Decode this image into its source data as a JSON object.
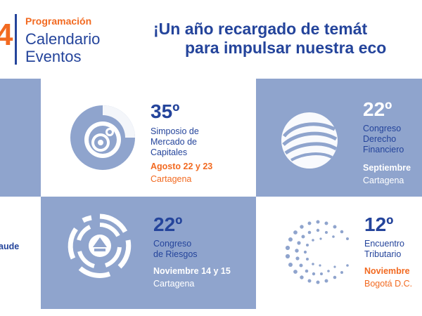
{
  "header": {
    "year_fragment": "4",
    "kicker": "Programación",
    "title_line1": "Calendario",
    "title_line2": "Eventos",
    "headline_line1": "¡Un año recargado de temát",
    "headline_line2": "para impulsar nuestra eco"
  },
  "events": [
    {
      "number": "35º",
      "name_lines": [
        "Simposio de",
        "Mercado de",
        "Capitales"
      ],
      "date": "Agosto 22 y 23",
      "city": "Cartagena"
    },
    {
      "number": "22º",
      "name_lines": [
        "Congreso",
        "Derecho",
        "Financiero"
      ],
      "date": "Septiembre",
      "city": "Cartagena"
    },
    {
      "number": "22º",
      "name_lines": [
        "Congreso",
        "de Riesgos"
      ],
      "date": "Noviembre 14 y 15",
      "city": "Cartagena"
    },
    {
      "number": "12º",
      "name_lines": [
        "Encuentro",
        "Tributario"
      ],
      "date": "Noviembre",
      "city": "Bogotá D.C."
    }
  ],
  "left_fragment": {
    "text": "aude"
  },
  "colors": {
    "navy": "#24449b",
    "orange": "#f26a21",
    "tile_blue": "#8fa4cd",
    "white": "#ffffff"
  },
  "icons": [
    "simposio-circles-icon",
    "congreso-sphere-icon",
    "riesgos-arcs-icon",
    "tributario-dots-icon"
  ]
}
